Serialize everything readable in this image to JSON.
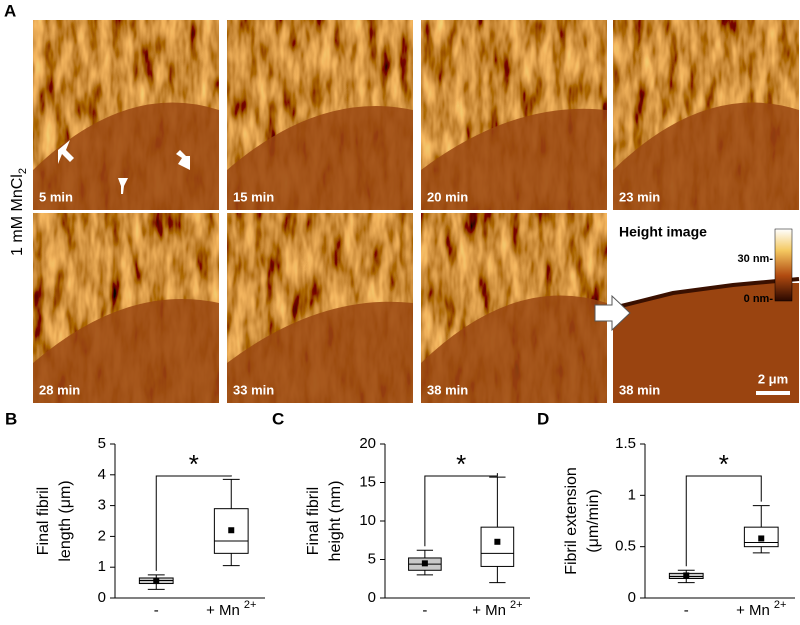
{
  "panel_a": {
    "label": "A",
    "row_label": "1 mM MnCl",
    "row_label_sub": "2",
    "images": [
      {
        "time": "5 min"
      },
      {
        "time": "15 min"
      },
      {
        "time": "20 min"
      },
      {
        "time": "23 min"
      },
      {
        "time": "28 min"
      },
      {
        "time": "33 min"
      },
      {
        "time": "38 min"
      },
      {
        "time": "38 min"
      }
    ],
    "height_image": {
      "title": "Height image",
      "scale_top": "30 nm-",
      "scale_bottom": "0 nm-",
      "scale_bar": "2 μm"
    }
  },
  "chart_data": [
    {
      "type": "box",
      "panel": "B",
      "ylabel_lines": [
        "Final fibril",
        "length (μm)"
      ],
      "categories": [
        "-",
        "+ Mn"
      ],
      "category_superscript": "2+",
      "box_colors": [
        "#c8c8c8",
        "#ffffff"
      ],
      "stats": {
        "low": [
          0.28,
          1.05
        ],
        "q1": [
          0.47,
          1.45
        ],
        "median": [
          0.57,
          1.85
        ],
        "q3": [
          0.65,
          2.9
        ],
        "high": [
          0.75,
          3.85
        ],
        "mean": [
          0.55,
          2.2
        ]
      },
      "ylim": [
        0,
        5
      ],
      "yticks": [
        0,
        1,
        2,
        3,
        4,
        5
      ],
      "annotation": "*"
    },
    {
      "type": "box",
      "panel": "C",
      "ylabel_lines": [
        "Final fibril",
        "height (nm)"
      ],
      "categories": [
        "-",
        "+ Mn"
      ],
      "category_superscript": "2+",
      "box_colors": [
        "#c8c8c8",
        "#ffffff"
      ],
      "stats": {
        "low": [
          3.0,
          2.0
        ],
        "q1": [
          3.6,
          4.1
        ],
        "median": [
          4.4,
          5.8
        ],
        "q3": [
          5.2,
          9.2
        ],
        "high": [
          6.2,
          15.7
        ],
        "mean": [
          4.5,
          7.3
        ]
      },
      "ylim": [
        0,
        20
      ],
      "yticks": [
        0,
        5,
        10,
        15,
        20
      ],
      "annotation": "*"
    },
    {
      "type": "box",
      "panel": "D",
      "ylabel_lines": [
        "Fibril extension",
        "(μm/min)"
      ],
      "categories": [
        "-",
        "+ Mn"
      ],
      "category_superscript": "2+",
      "box_colors": [
        "#c8c8c8",
        "#ffffff"
      ],
      "stats": {
        "low": [
          0.15,
          0.44
        ],
        "q1": [
          0.19,
          0.5
        ],
        "median": [
          0.21,
          0.54
        ],
        "q3": [
          0.24,
          0.69
        ],
        "high": [
          0.27,
          0.9
        ],
        "mean": [
          0.22,
          0.58
        ]
      },
      "ylim": [
        0,
        1.5
      ],
      "yticks": [
        0,
        0.5,
        1,
        1.5
      ],
      "annotation": "*"
    }
  ]
}
